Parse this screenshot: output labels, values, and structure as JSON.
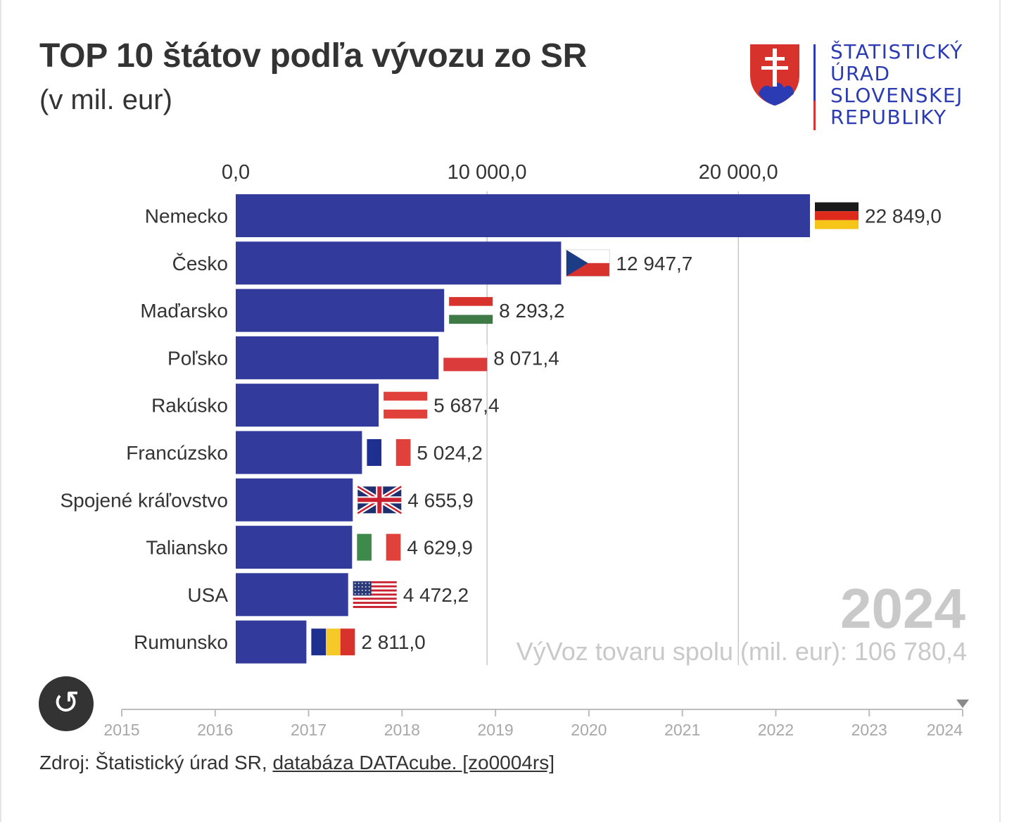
{
  "header": {
    "title": "TOP 10 štátov podľa vývozu zo SR",
    "subtitle": "(v mil. eur)"
  },
  "logo": {
    "lines": [
      "ŠTATISTICKÝ",
      "ÚRAD",
      "SLOVENSKEJ",
      "REPUBLIKY"
    ],
    "text_color": "#2a3bb4"
  },
  "chart_data": {
    "type": "bar",
    "orientation": "horizontal",
    "title": "TOP 10 štátov podľa vývozu zo SR",
    "subtitle": "(v mil. eur)",
    "xlim": [
      0,
      22849
    ],
    "ticks": [
      {
        "value": 0,
        "label": "0,0"
      },
      {
        "value": 10000,
        "label": "10 000,0"
      },
      {
        "value": 20000,
        "label": "20 000,0"
      }
    ],
    "bar_color": "#2b3599",
    "categories": [
      "Nemecko",
      "Česko",
      "Maďarsko",
      "Poľsko",
      "Rakúsko",
      "Francúzsko",
      "Spojené kráľovstvo",
      "Taliansko",
      "USA",
      "Rumunsko"
    ],
    "values": [
      22849.0,
      12947.7,
      8293.2,
      8071.4,
      5687.4,
      5024.2,
      4655.9,
      4629.9,
      4472.2,
      2811.0
    ],
    "value_labels": [
      "22 849,0",
      "12 947,7",
      "8 293,2",
      "8 071,4",
      "5 687,4",
      "5 024,2",
      "4 655,9",
      "4 629,9",
      "4 472,2",
      "2 811,0"
    ],
    "flags": [
      "germany-flag",
      "czech-flag",
      "hungary-flag",
      "poland-flag",
      "austria-flag",
      "france-flag",
      "uk-flag",
      "italy-flag",
      "usa-flag",
      "romania-flag"
    ],
    "year": "2024",
    "total_label": "VýVoz tovaru spolu (mil. eur): 106 780,4",
    "timeline": {
      "years": [
        "2015",
        "2016",
        "2017",
        "2018",
        "2019",
        "2020",
        "2021",
        "2022",
        "2023",
        "2024"
      ],
      "current": "2024"
    }
  },
  "controls": {
    "replay_icon": "replay-icon"
  },
  "source": {
    "prefix": "Zdroj: Štatistický úrad SR, ",
    "link_text": "databáza DATAcube. [zo0004rs]"
  }
}
